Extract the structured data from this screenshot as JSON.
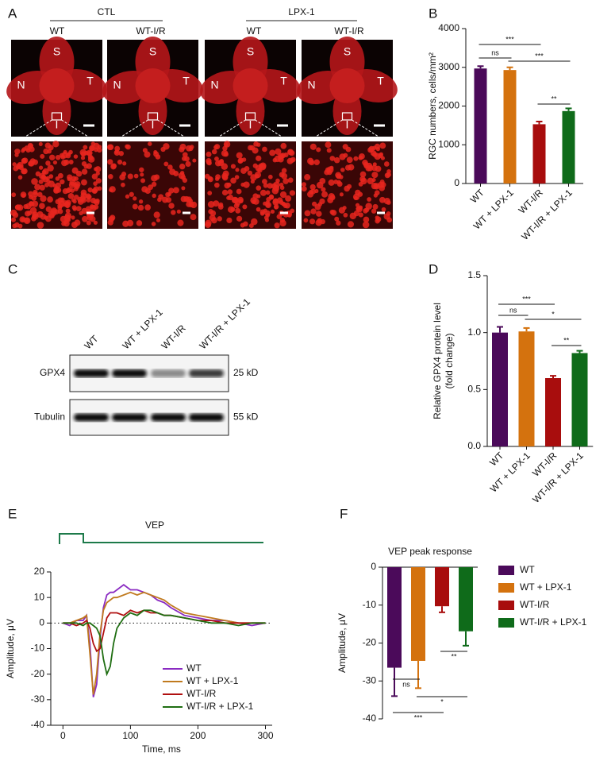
{
  "panel_a": {
    "letter": "A",
    "groups": [
      {
        "label": "CTL",
        "columns": [
          "WT",
          "WT-I/R"
        ]
      },
      {
        "label": "LPX-1",
        "columns": [
          "WT",
          "WT-I/R"
        ]
      }
    ],
    "orientation": [
      "S",
      "N",
      "T",
      "I"
    ]
  },
  "panel_c": {
    "letter": "C",
    "lanes": [
      "WT",
      "WT + LPX-1",
      "WT-I/R",
      "WT-I/R + LPX-1"
    ],
    "rows": [
      "GPX4",
      "Tubulin"
    ],
    "sizes": [
      "25 kD",
      "55 kD"
    ]
  },
  "chart_data": [
    {
      "type": "bar",
      "letter": "B",
      "ylabel": [
        "RGC numbers, cells/mm²"
      ],
      "categories": [
        "WT",
        "WT + LPX-1",
        "WT-I/R",
        "WT-I/R + LPX-1"
      ],
      "values": [
        2970,
        2930,
        1530,
        1870
      ],
      "errors": [
        60,
        70,
        70,
        70
      ],
      "colors": [
        "#4b0a5a",
        "#d4720e",
        "#a80d0d",
        "#0f6b1a"
      ],
      "ylim": [
        0,
        4000
      ],
      "yticks": [
        0,
        1000,
        2000,
        3000,
        4000
      ],
      "annotations": [
        "***",
        "ns",
        "***",
        "**"
      ]
    },
    {
      "type": "bar",
      "letter": "D",
      "ylabel": [
        "Relative GPX4 protein level",
        "(fold change)"
      ],
      "categories": [
        "WT",
        "WT + LPX-1",
        "WT-I/R",
        "WT-I/R + LPX-1"
      ],
      "values": [
        1.0,
        1.01,
        0.6,
        0.82
      ],
      "errors": [
        0.05,
        0.03,
        0.02,
        0.02
      ],
      "colors": [
        "#4b0a5a",
        "#d4720e",
        "#a80d0d",
        "#0f6b1a"
      ],
      "ylim": [
        0,
        1.5
      ],
      "yticks": [
        {
          "value": 0,
          "label": "0.0"
        },
        {
          "value": 0.5,
          "label": "0.5"
        },
        {
          "value": 1,
          "label": "1.0"
        },
        {
          "value": 1.5,
          "label": "1.5"
        }
      ],
      "annotations": [
        "***",
        "ns",
        "*",
        "**"
      ]
    },
    {
      "type": "line",
      "letter": "E",
      "stimulus_label": "VEP",
      "xlabel": "Time, ms",
      "ylabel": [
        "Amplitude, μV"
      ],
      "x": [
        0,
        10,
        20,
        30,
        35,
        40,
        45,
        50,
        55,
        60,
        65,
        70,
        75,
        80,
        90,
        100,
        110,
        120,
        130,
        140,
        150,
        160,
        180,
        200,
        220,
        240,
        260,
        280,
        300
      ],
      "series": [
        {
          "name": "WT",
          "color": "#8a2bc2",
          "values": [
            0,
            -1,
            1,
            1,
            3,
            -8,
            -29,
            -24,
            -6,
            6,
            11,
            12,
            12,
            13,
            15,
            13,
            13,
            12,
            11,
            9,
            8,
            6,
            3,
            2,
            1,
            1,
            0,
            -1,
            0
          ]
        },
        {
          "name": "WT + LPX-1",
          "color": "#c07a1e",
          "values": [
            0,
            0,
            1,
            2,
            3,
            -12,
            -28,
            -20,
            -4,
            5,
            8,
            9,
            10,
            10,
            11,
            12,
            11,
            12,
            11,
            10,
            9,
            7,
            4,
            3,
            2,
            1,
            0,
            0,
            0
          ]
        },
        {
          "name": "WT-I/R",
          "color": "#b01010",
          "values": [
            0,
            0,
            -1,
            0,
            1,
            -2,
            -8,
            -11,
            -10,
            -4,
            2,
            4,
            4,
            4,
            3,
            5,
            4,
            5,
            4,
            4,
            3,
            3,
            2,
            1,
            1,
            0,
            0,
            0,
            0
          ]
        },
        {
          "name": "WT-I/R + LPX-1",
          "color": "#1f6e12",
          "values": [
            0,
            0,
            0,
            -1,
            0,
            0,
            -1,
            -2,
            -5,
            -14,
            -20,
            -17,
            -8,
            -2,
            2,
            4,
            3,
            5,
            5,
            4,
            3,
            3,
            2,
            1,
            0,
            0,
            -1,
            0,
            0
          ]
        }
      ],
      "xlim": [
        -18,
        310
      ],
      "xticks": [
        0,
        100,
        200,
        300
      ],
      "ylim": [
        -40,
        20
      ],
      "yticks": [
        -40,
        -30,
        -20,
        -10,
        0,
        10,
        20
      ]
    },
    {
      "type": "bar",
      "letter": "F",
      "title": "VEP peak response",
      "ylabel": [
        "Amplitude, μV"
      ],
      "legend": "right",
      "categories": [
        "WT",
        "WT + LPX-1",
        "WT-I/R",
        "WT-I/R + LPX-1"
      ],
      "values": [
        -26.5,
        -24.7,
        -10.3,
        -16.9
      ],
      "errors": [
        7.5,
        7.2,
        1.6,
        3.8
      ],
      "colors": [
        "#4b0a5a",
        "#d4720e",
        "#a80d0d",
        "#0f6b1a"
      ],
      "ylim": [
        -40,
        0
      ],
      "yticks": [
        -40,
        -30,
        -20,
        -10,
        0
      ],
      "annotations": [
        "**",
        "ns",
        "*",
        "***"
      ]
    }
  ]
}
